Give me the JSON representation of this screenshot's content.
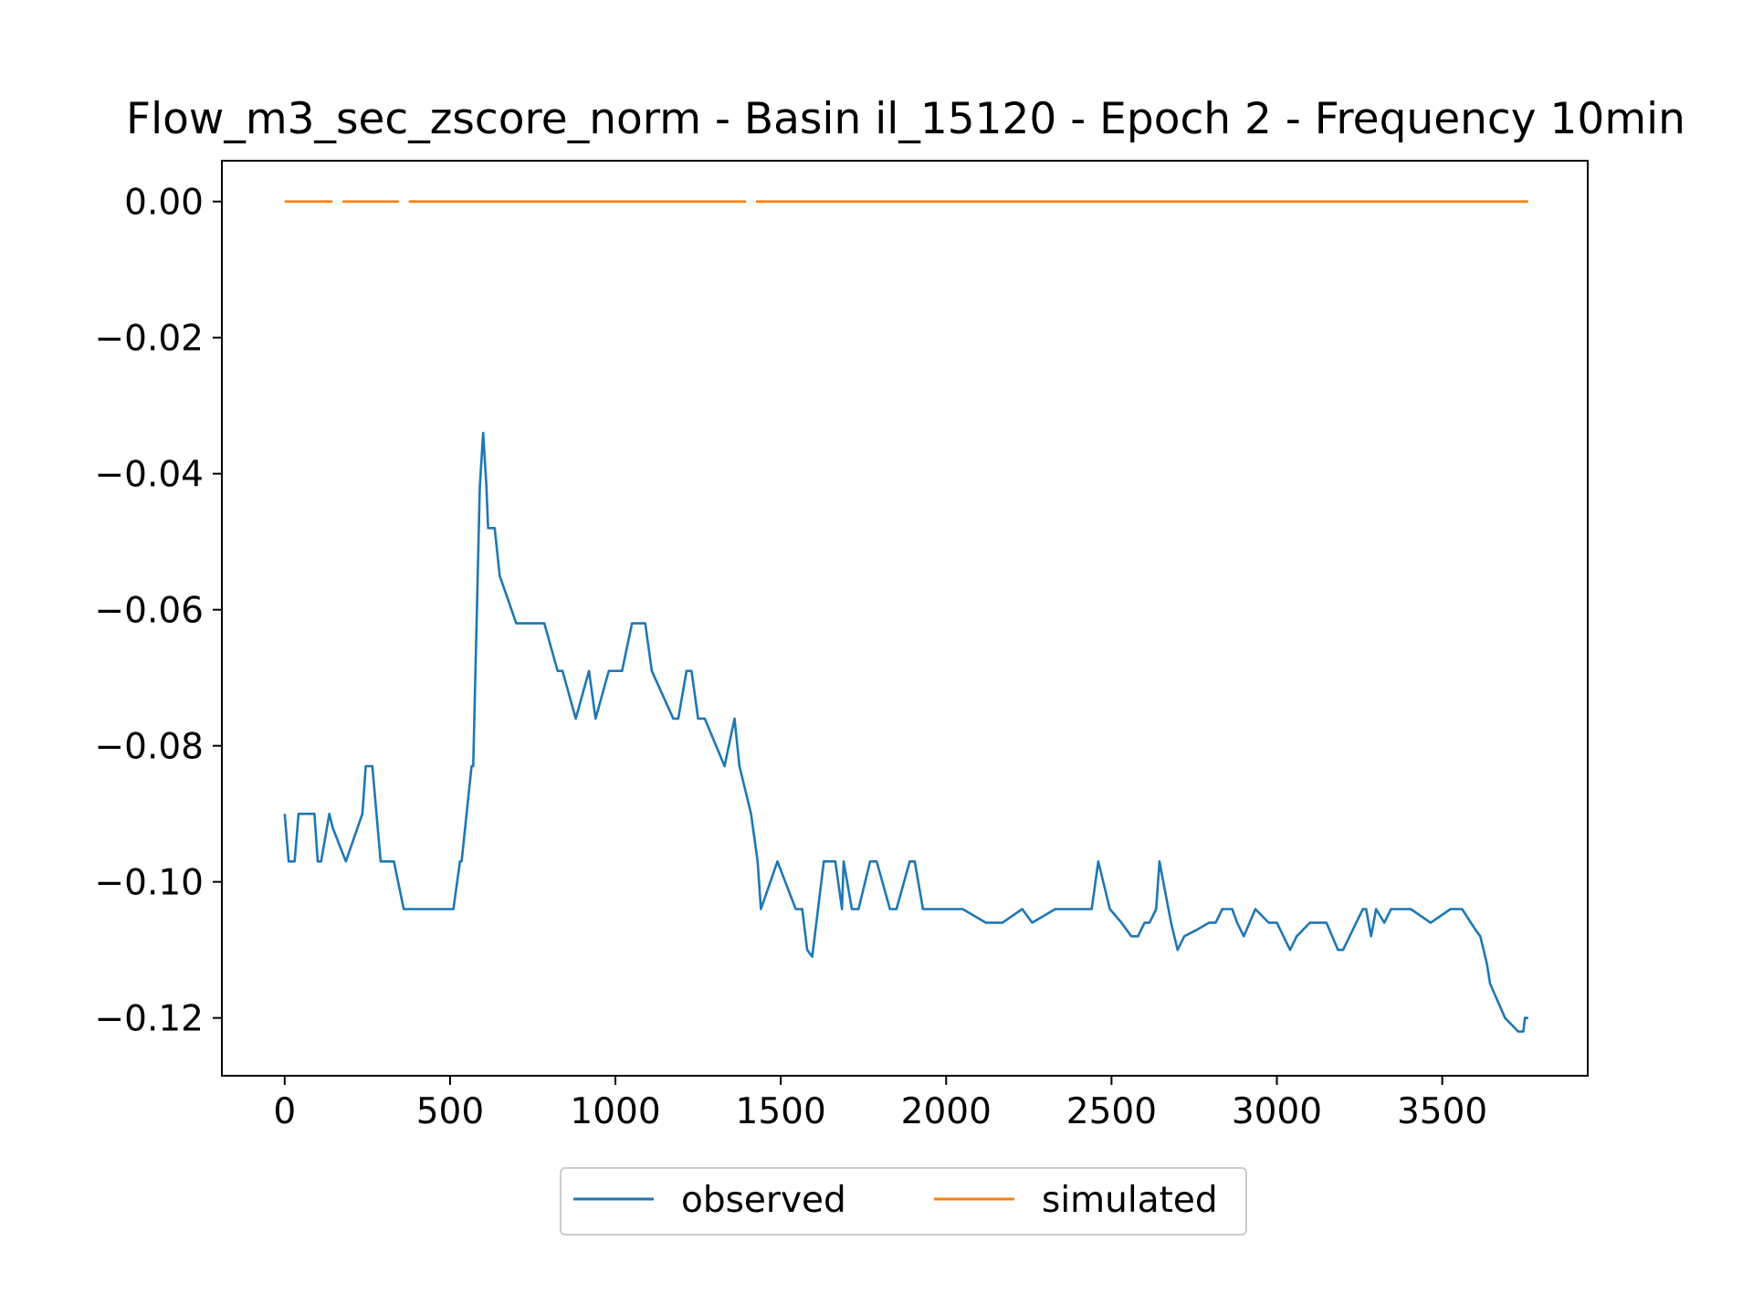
{
  "chart_data": {
    "type": "line",
    "title": "Flow_m3_sec_zscore_norm - Basin il_15120 - Epoch 2 - Frequency 10min",
    "xlabel": "",
    "ylabel": "",
    "xlim": [
      -190,
      3940
    ],
    "ylim": [
      -0.1285,
      0.006
    ],
    "xticks": [
      0,
      500,
      1000,
      1500,
      2000,
      2500,
      3000,
      3500
    ],
    "xtick_labels": [
      "0",
      "500",
      "1000",
      "1500",
      "2000",
      "2500",
      "3000",
      "3500"
    ],
    "yticks": [
      0.0,
      -0.02,
      -0.04,
      -0.06,
      -0.08,
      -0.1,
      -0.12
    ],
    "ytick_labels": [
      "0.00",
      "−0.02",
      "−0.04",
      "−0.06",
      "−0.08",
      "−0.10",
      "−0.12"
    ],
    "grid": false,
    "legend": {
      "position": "bottom-center-outside",
      "columns": 2
    },
    "series": [
      {
        "name": "observed",
        "color": "#1f77b4",
        "points": [
          [
            0,
            -0.09
          ],
          [
            12,
            -0.097
          ],
          [
            30,
            -0.097
          ],
          [
            42,
            -0.09
          ],
          [
            60,
            -0.09
          ],
          [
            90,
            -0.09
          ],
          [
            100,
            -0.097
          ],
          [
            110,
            -0.097
          ],
          [
            135,
            -0.09
          ],
          [
            145,
            -0.092
          ],
          [
            185,
            -0.097
          ],
          [
            235,
            -0.09
          ],
          [
            245,
            -0.083
          ],
          [
            265,
            -0.083
          ],
          [
            290,
            -0.097
          ],
          [
            330,
            -0.097
          ],
          [
            360,
            -0.104
          ],
          [
            400,
            -0.104
          ],
          [
            460,
            -0.104
          ],
          [
            510,
            -0.104
          ],
          [
            530,
            -0.097
          ],
          [
            535,
            -0.097
          ],
          [
            565,
            -0.083
          ],
          [
            570,
            -0.083
          ],
          [
            590,
            -0.042
          ],
          [
            600,
            -0.034
          ],
          [
            610,
            -0.042
          ],
          [
            615,
            -0.048
          ],
          [
            635,
            -0.048
          ],
          [
            650,
            -0.055
          ],
          [
            700,
            -0.062
          ],
          [
            740,
            -0.062
          ],
          [
            785,
            -0.062
          ],
          [
            825,
            -0.069
          ],
          [
            840,
            -0.069
          ],
          [
            880,
            -0.076
          ],
          [
            920,
            -0.069
          ],
          [
            940,
            -0.076
          ],
          [
            980,
            -0.069
          ],
          [
            1020,
            -0.069
          ],
          [
            1050,
            -0.062
          ],
          [
            1090,
            -0.062
          ],
          [
            1110,
            -0.069
          ],
          [
            1175,
            -0.076
          ],
          [
            1190,
            -0.076
          ],
          [
            1215,
            -0.069
          ],
          [
            1230,
            -0.069
          ],
          [
            1250,
            -0.076
          ],
          [
            1270,
            -0.076
          ],
          [
            1330,
            -0.083
          ],
          [
            1360,
            -0.076
          ],
          [
            1375,
            -0.083
          ],
          [
            1410,
            -0.09
          ],
          [
            1430,
            -0.097
          ],
          [
            1440,
            -0.104
          ],
          [
            1490,
            -0.097
          ],
          [
            1545,
            -0.104
          ],
          [
            1565,
            -0.104
          ],
          [
            1580,
            -0.11
          ],
          [
            1595,
            -0.111
          ],
          [
            1630,
            -0.097
          ],
          [
            1665,
            -0.097
          ],
          [
            1685,
            -0.104
          ],
          [
            1690,
            -0.097
          ],
          [
            1715,
            -0.104
          ],
          [
            1735,
            -0.104
          ],
          [
            1770,
            -0.097
          ],
          [
            1790,
            -0.097
          ],
          [
            1830,
            -0.104
          ],
          [
            1850,
            -0.104
          ],
          [
            1890,
            -0.097
          ],
          [
            1905,
            -0.097
          ],
          [
            1930,
            -0.104
          ],
          [
            1990,
            -0.104
          ],
          [
            2050,
            -0.104
          ],
          [
            2120,
            -0.106
          ],
          [
            2170,
            -0.106
          ],
          [
            2230,
            -0.104
          ],
          [
            2260,
            -0.106
          ],
          [
            2330,
            -0.104
          ],
          [
            2400,
            -0.104
          ],
          [
            2440,
            -0.104
          ],
          [
            2460,
            -0.097
          ],
          [
            2495,
            -0.104
          ],
          [
            2530,
            -0.106
          ],
          [
            2560,
            -0.108
          ],
          [
            2580,
            -0.108
          ],
          [
            2600,
            -0.106
          ],
          [
            2615,
            -0.106
          ],
          [
            2635,
            -0.104
          ],
          [
            2645,
            -0.097
          ],
          [
            2680,
            -0.106
          ],
          [
            2700,
            -0.11
          ],
          [
            2720,
            -0.108
          ],
          [
            2760,
            -0.107
          ],
          [
            2795,
            -0.106
          ],
          [
            2815,
            -0.106
          ],
          [
            2835,
            -0.104
          ],
          [
            2865,
            -0.104
          ],
          [
            2880,
            -0.106
          ],
          [
            2900,
            -0.108
          ],
          [
            2935,
            -0.104
          ],
          [
            2975,
            -0.106
          ],
          [
            3000,
            -0.106
          ],
          [
            3040,
            -0.11
          ],
          [
            3060,
            -0.108
          ],
          [
            3100,
            -0.106
          ],
          [
            3150,
            -0.106
          ],
          [
            3185,
            -0.11
          ],
          [
            3200,
            -0.11
          ],
          [
            3260,
            -0.104
          ],
          [
            3270,
            -0.104
          ],
          [
            3285,
            -0.108
          ],
          [
            3300,
            -0.104
          ],
          [
            3325,
            -0.106
          ],
          [
            3345,
            -0.104
          ],
          [
            3405,
            -0.104
          ],
          [
            3465,
            -0.106
          ],
          [
            3525,
            -0.104
          ],
          [
            3560,
            -0.104
          ],
          [
            3600,
            -0.107
          ],
          [
            3615,
            -0.108
          ],
          [
            3635,
            -0.112
          ],
          [
            3645,
            -0.115
          ],
          [
            3690,
            -0.12
          ],
          [
            3730,
            -0.122
          ],
          [
            3745,
            -0.122
          ],
          [
            3750,
            -0.12
          ],
          [
            3760,
            -0.12
          ]
        ]
      },
      {
        "name": "simulated",
        "color": "#ff7f0e",
        "segments": [
          [
            [
              0,
              0.0
            ],
            [
              145,
              0.0
            ]
          ],
          [
            [
              175,
              0.0
            ],
            [
              345,
              0.0
            ]
          ],
          [
            [
              375,
              0.0
            ],
            [
              1395,
              0.0
            ]
          ],
          [
            [
              1425,
              0.0
            ],
            [
              3760,
              0.0
            ]
          ]
        ]
      }
    ]
  }
}
